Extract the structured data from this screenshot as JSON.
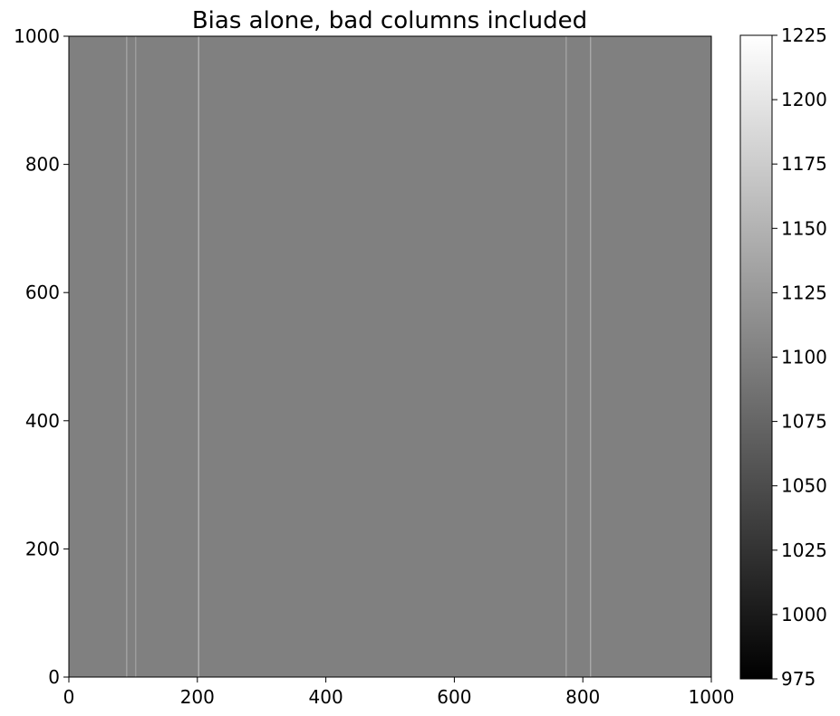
{
  "chart_data": {
    "type": "heatmap",
    "title": "Bias alone, bad columns included",
    "xlabel": "",
    "ylabel": "",
    "xlim": [
      0,
      1000
    ],
    "ylim": [
      0,
      1000
    ],
    "x_ticks": [
      0,
      200,
      400,
      600,
      800,
      1000
    ],
    "y_ticks": [
      0,
      200,
      400,
      600,
      800,
      1000
    ],
    "background_value": 1100,
    "bad_columns": [
      {
        "x": 90,
        "value": 1135
      },
      {
        "x": 104,
        "value": 1130
      },
      {
        "x": 202,
        "value": 1150
      },
      {
        "x": 774,
        "value": 1135
      },
      {
        "x": 812,
        "value": 1140
      }
    ],
    "colorbar": {
      "colormap": "gray",
      "vmin": 975,
      "vmax": 1225,
      "ticks": [
        975,
        1000,
        1025,
        1050,
        1075,
        1100,
        1125,
        1150,
        1175,
        1200,
        1225
      ]
    },
    "grid": false
  }
}
